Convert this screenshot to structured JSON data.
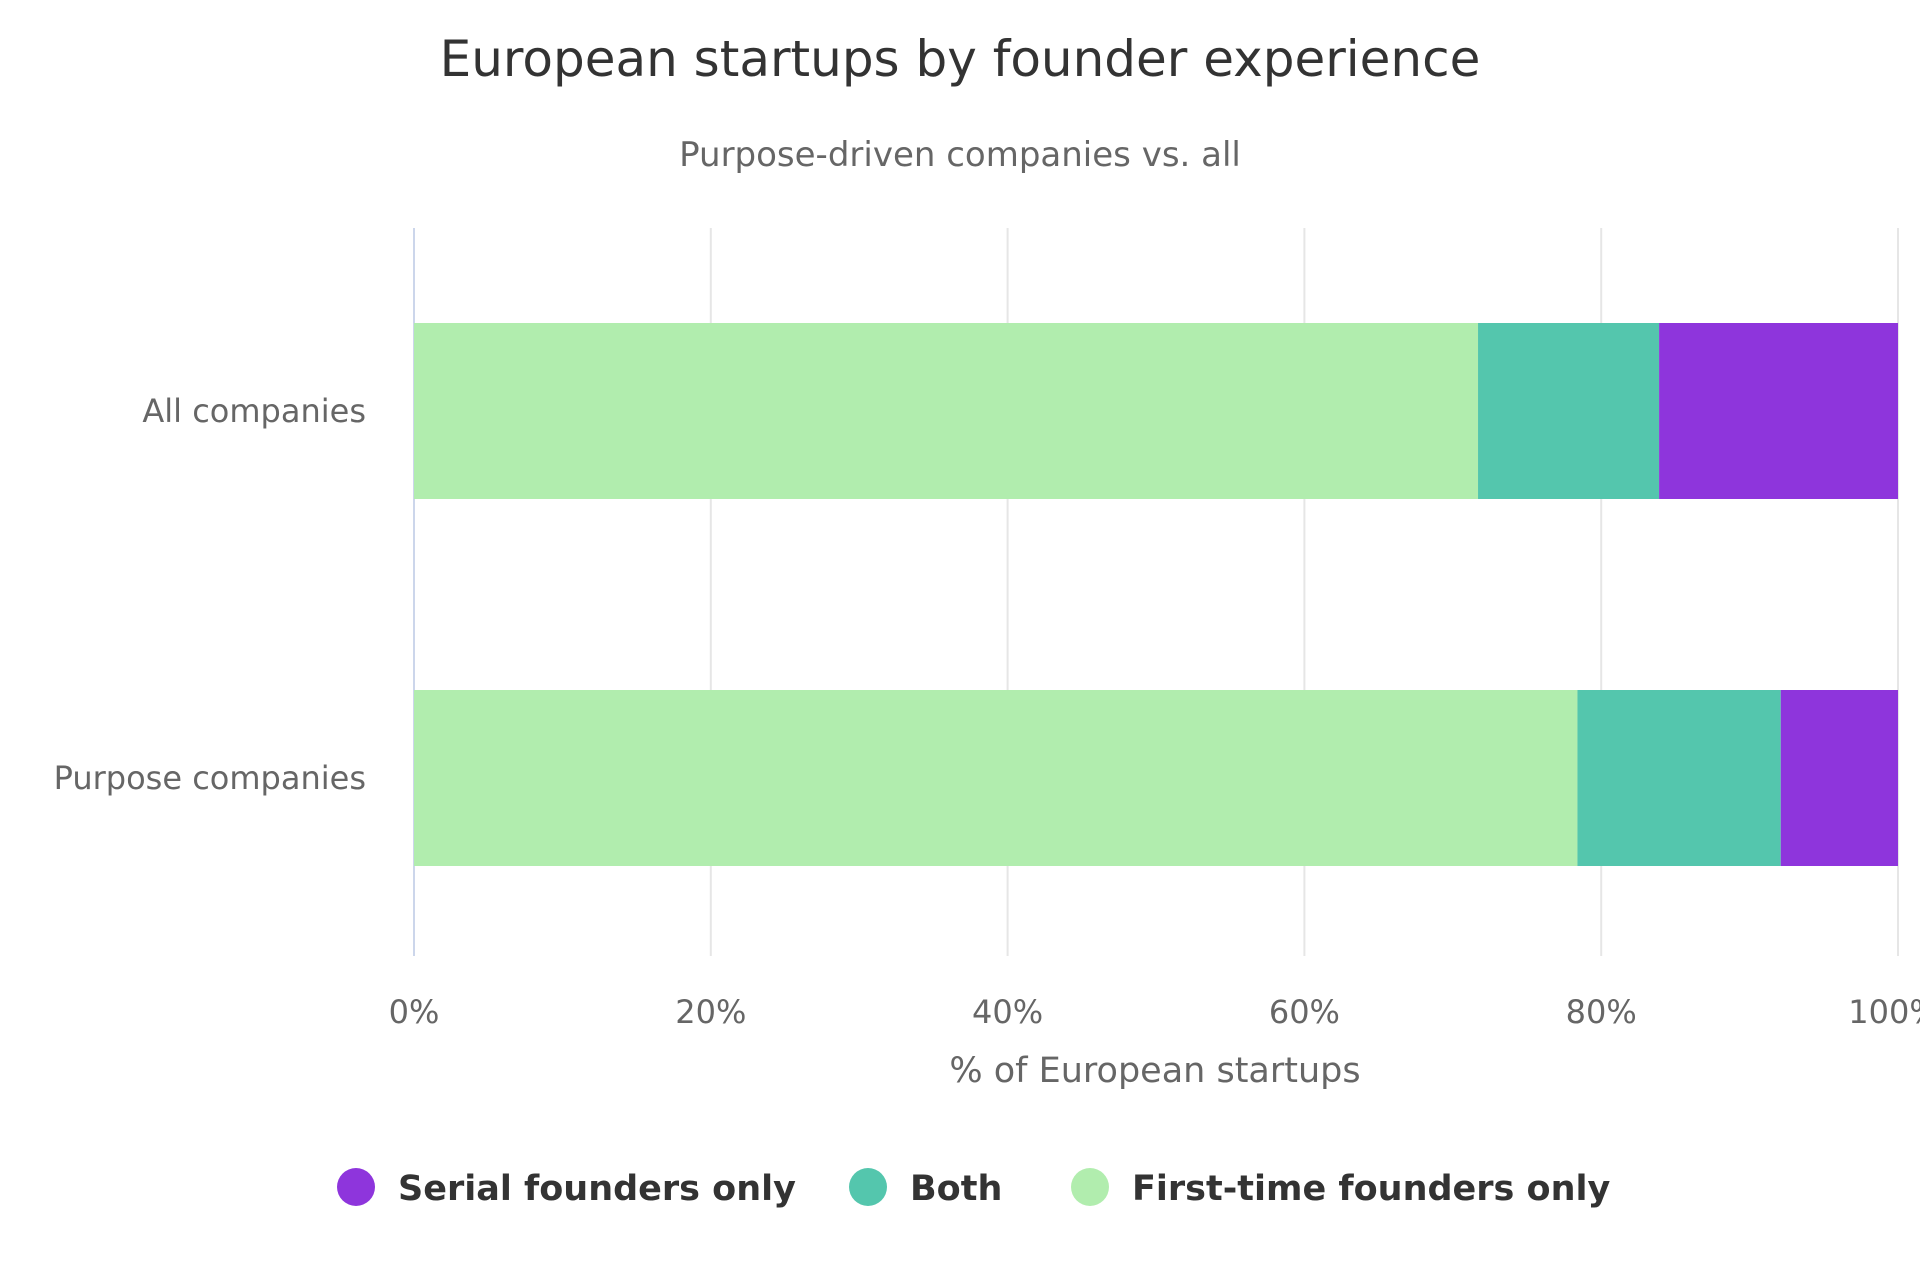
{
  "chart_data": {
    "type": "bar",
    "orientation": "horizontal",
    "stacked": true,
    "title": "European startups by founder experience",
    "subtitle": "Purpose-driven companies vs. all",
    "categories": [
      "All companies",
      "Purpose companies"
    ],
    "series": [
      {
        "name": "First-time founders only",
        "color": "#b1edae",
        "values": [
          71.7,
          78.4
        ]
      },
      {
        "name": "Both",
        "color": "#54c6ad",
        "values": [
          12.2,
          13.7
        ]
      },
      {
        "name": "Serial founders only",
        "color": "#8e35dc",
        "values": [
          16.1,
          7.9
        ]
      }
    ],
    "legend_order": [
      "Serial founders only",
      "Both",
      "First-time founders only"
    ],
    "xlabel": "% of European startups",
    "xlim": [
      0,
      100
    ],
    "xticks": [
      0,
      20,
      40,
      60,
      80,
      100
    ],
    "tick_suffix": "%",
    "grid": true,
    "legend_position": "bottom"
  }
}
